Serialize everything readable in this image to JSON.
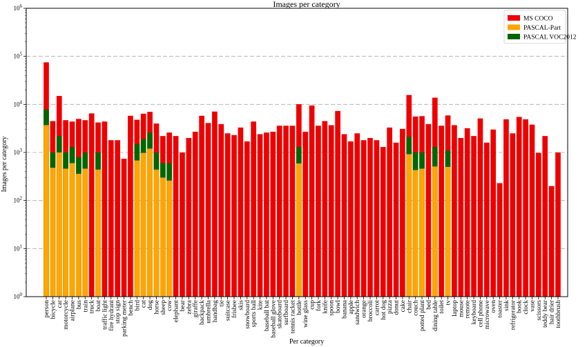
{
  "chart_data": {
    "type": "bar",
    "title": "Images per category",
    "xlabel": "Per category",
    "ylabel": "Images per category",
    "yscale": "log",
    "ylim": [
      1,
      1000000
    ],
    "yticks": [
      {
        "base": "10",
        "exp": "0"
      },
      {
        "base": "10",
        "exp": "1"
      },
      {
        "base": "10",
        "exp": "2"
      },
      {
        "base": "10",
        "exp": "3"
      },
      {
        "base": "10",
        "exp": "4"
      },
      {
        "base": "10",
        "exp": "5"
      },
      {
        "base": "10",
        "exp": "6"
      }
    ],
    "grid": "horizontal dashed at major ticks",
    "legend_position": "top-right",
    "categories": [
      "person",
      "bicycle",
      "car",
      "motorcycle",
      "airplane",
      "bus",
      "train",
      "truck",
      "boat",
      "traffic light",
      "fire hydrant",
      "stop sign",
      "parking meter",
      "bench",
      "bird",
      "cat",
      "dog",
      "horse",
      "sheep",
      "cow",
      "elephant",
      "bear",
      "zebra",
      "giraffe",
      "backpack",
      "umbrella",
      "handbag",
      "tie",
      "suitcase",
      "frisbee",
      "skis",
      "snowboard",
      "sports ball",
      "kite",
      "baseball bat",
      "baseball glove",
      "skateboard",
      "surfboard",
      "tennis racket",
      "bottle",
      "wine glass",
      "cup",
      "fork",
      "knife",
      "spoon",
      "bowl",
      "banana",
      "apple",
      "sandwich",
      "orange",
      "broccoli",
      "carrot",
      "hot dog",
      "pizza",
      "donut",
      "cake",
      "chair",
      "couch",
      "potted plant",
      "bed",
      "dining table",
      "toilet",
      "tv",
      "laptop",
      "mouse",
      "remote",
      "keyboard",
      "cell phone",
      "microwave",
      "oven",
      "toaster",
      "sink",
      "refrigerator",
      "book",
      "clock",
      "vase",
      "scissors",
      "teddy bear",
      "hair drier",
      "toothbrush"
    ],
    "series": [
      {
        "name": "MS COCO",
        "color": "#ee0000",
        "values": [
          75000,
          4500,
          15000,
          4700,
          4400,
          5000,
          4700,
          6500,
          4200,
          4400,
          1800,
          1800,
          740,
          5800,
          4800,
          6400,
          7000,
          4000,
          2200,
          2600,
          2200,
          1000,
          2000,
          2700,
          5800,
          4100,
          7100,
          3900,
          2500,
          2300,
          3300,
          1700,
          4400,
          2400,
          2600,
          2700,
          3600,
          3600,
          3600,
          10100,
          2700,
          9500,
          3600,
          4500,
          3700,
          7300,
          2400,
          1700,
          2500,
          1800,
          2000,
          1800,
          1300,
          3300,
          1600,
          3100,
          15700,
          5600,
          5700,
          3900,
          13800,
          3600,
          5900,
          3700,
          2000,
          3200,
          2200,
          5100,
          1600,
          3000,
          230,
          4900,
          2500,
          5500,
          4900,
          3800,
          980,
          2200,
          200,
          1000
        ]
      },
      {
        "name": "PASCAL VOC2012",
        "color": "#006600",
        "values": [
          7800,
          1000,
          2200,
          1000,
          1300,
          800,
          1000,
          null,
          1000,
          null,
          null,
          null,
          null,
          null,
          1500,
          1900,
          2600,
          1000,
          600,
          600,
          null,
          null,
          null,
          null,
          null,
          null,
          null,
          null,
          null,
          null,
          null,
          null,
          null,
          null,
          null,
          null,
          null,
          null,
          null,
          1300,
          null,
          null,
          null,
          null,
          null,
          null,
          null,
          null,
          null,
          null,
          null,
          null,
          null,
          null,
          null,
          null,
          2100,
          1000,
          1000,
          null,
          1300,
          null,
          1100,
          null,
          null,
          null,
          null,
          null,
          null,
          null,
          null,
          null,
          null,
          null,
          null,
          null,
          null,
          null,
          null,
          null
        ]
      },
      {
        "name": "PASCAL-Part",
        "color": "#ffa500",
        "values": [
          3700,
          480,
          1000,
          460,
          600,
          360,
          460,
          null,
          440,
          null,
          null,
          null,
          null,
          null,
          680,
          980,
          1200,
          440,
          300,
          260,
          null,
          null,
          null,
          null,
          null,
          null,
          null,
          null,
          null,
          null,
          null,
          null,
          null,
          null,
          null,
          null,
          null,
          null,
          null,
          590,
          null,
          null,
          null,
          null,
          null,
          null,
          null,
          null,
          null,
          null,
          null,
          null,
          null,
          null,
          null,
          null,
          920,
          430,
          460,
          null,
          510,
          null,
          500,
          null,
          null,
          null,
          null,
          null,
          null,
          null,
          null,
          null,
          null,
          null,
          null,
          null,
          null,
          null,
          null,
          null
        ]
      }
    ],
    "legend": [
      {
        "label": "MS COCO",
        "color": "#ee0000"
      },
      {
        "label": "PASCAL-Part",
        "color": "#ffa500"
      },
      {
        "label": "PASCAL VOC2012",
        "color": "#006600"
      }
    ]
  }
}
